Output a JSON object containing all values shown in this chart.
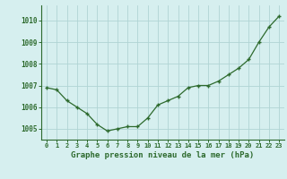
{
  "x": [
    0,
    1,
    2,
    3,
    4,
    5,
    6,
    7,
    8,
    9,
    10,
    11,
    12,
    13,
    14,
    15,
    16,
    17,
    18,
    19,
    20,
    21,
    22,
    23
  ],
  "y": [
    1006.9,
    1006.8,
    1006.3,
    1006.0,
    1005.7,
    1005.2,
    1004.9,
    1005.0,
    1005.1,
    1005.1,
    1005.5,
    1006.1,
    1006.3,
    1006.5,
    1006.9,
    1007.0,
    1007.0,
    1007.2,
    1007.5,
    1007.8,
    1008.2,
    1009.0,
    1009.7,
    1010.2
  ],
  "ylim": [
    1004.5,
    1010.7
  ],
  "yticks": [
    1005,
    1006,
    1007,
    1008,
    1009,
    1010
  ],
  "xticks": [
    0,
    1,
    2,
    3,
    4,
    5,
    6,
    7,
    8,
    9,
    10,
    11,
    12,
    13,
    14,
    15,
    16,
    17,
    18,
    19,
    20,
    21,
    22,
    23
  ],
  "line_color": "#2d6a2d",
  "marker": "+",
  "bg_color": "#d6efef",
  "grid_color": "#b0d4d4",
  "tick_color": "#2d6a2d",
  "xlabel": "Graphe pression niveau de la mer (hPa)",
  "xlabel_color": "#2d6a2d"
}
